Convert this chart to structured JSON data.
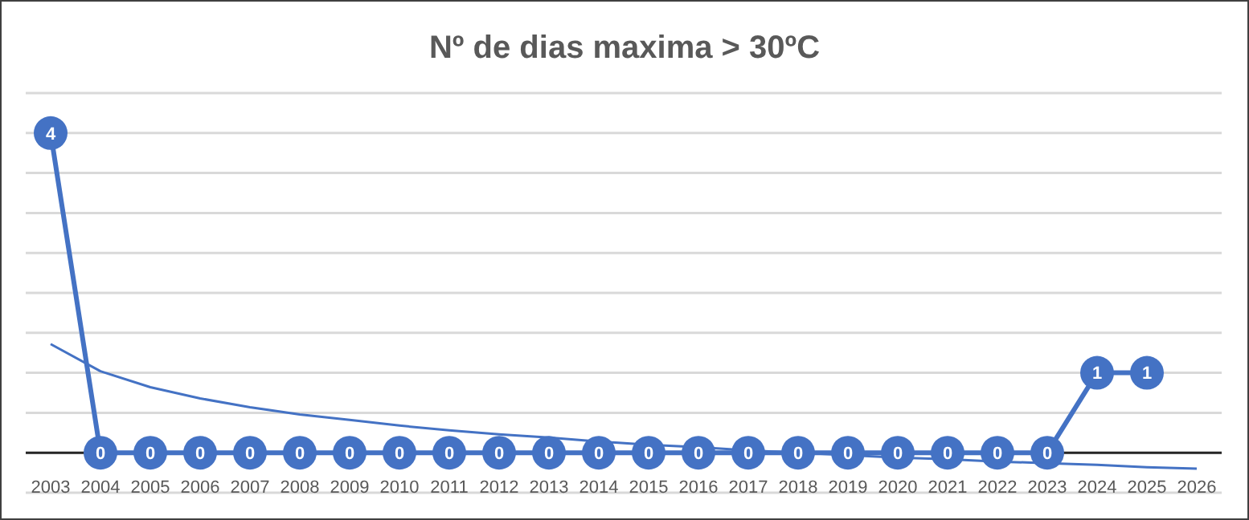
{
  "chart_data": {
    "type": "line",
    "title": "Nº de dias maxima > 30ºC",
    "categories": [
      "2003",
      "2004",
      "2005",
      "2006",
      "2007",
      "2008",
      "2009",
      "2010",
      "2011",
      "2012",
      "2013",
      "2014",
      "2015",
      "2016",
      "2017",
      "2018",
      "2019",
      "2020",
      "2021",
      "2022",
      "2023",
      "2024",
      "2025",
      "2026"
    ],
    "series": [
      {
        "color": "#4472c4",
        "values": [
          4,
          0,
          0,
          0,
          0,
          0,
          0,
          0,
          0,
          0,
          0,
          0,
          0,
          0,
          0,
          0,
          0,
          0,
          0,
          0,
          0,
          1,
          1,
          null
        ],
        "marker": "circle",
        "data_labels": true
      },
      {
        "color": "#4472c4",
        "values": [
          1.36,
          1.02,
          0.82,
          0.68,
          0.57,
          0.48,
          0.41,
          0.34,
          0.28,
          0.23,
          0.19,
          0.14,
          0.1,
          0.07,
          0.03,
          0.0,
          -0.03,
          -0.06,
          -0.08,
          -0.11,
          -0.13,
          -0.15,
          -0.18,
          -0.2
        ],
        "marker": "none"
      }
    ],
    "ylim": [
      -0.5,
      4.5
    ],
    "yticks": [
      {
        "value": -0.5,
        "label": null
      },
      {
        "value": 0,
        "label": null
      },
      {
        "value": 0.5,
        "label": null
      },
      {
        "value": 1,
        "label": null
      },
      {
        "value": 1.5,
        "label": null
      },
      {
        "value": 2,
        "label": null
      },
      {
        "value": 2.5,
        "label": null
      },
      {
        "value": 3,
        "label": null
      },
      {
        "value": 3.5,
        "label": null
      },
      {
        "value": 4,
        "label": null
      },
      {
        "value": 4.5,
        "label": null
      }
    ],
    "grid": "y",
    "legend": false,
    "tick_labels": "x"
  }
}
